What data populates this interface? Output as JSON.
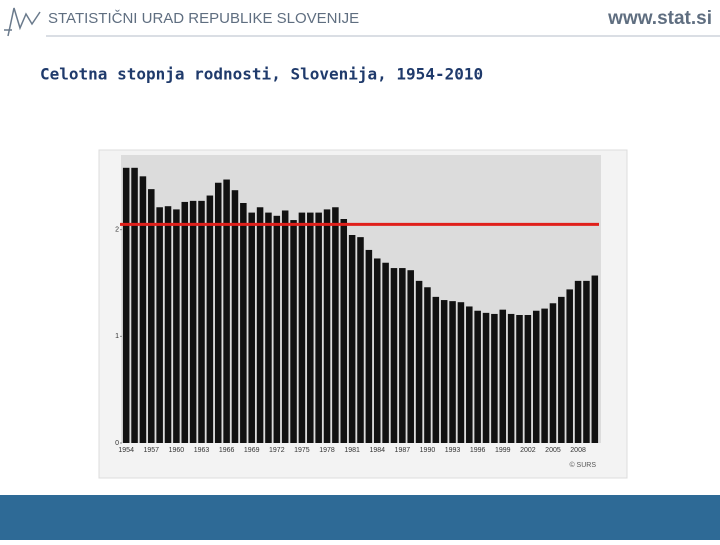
{
  "header": {
    "org": "STATISTIČNI URAD REPUBLIKE SLOVENIJE",
    "url": "www.stat.si"
  },
  "title": "Celotna stopnja rodnosti, Slovenija, 1954-2010",
  "chart_data": {
    "type": "bar",
    "color": "#111111",
    "categories": [
      "1954",
      null,
      null,
      "1957",
      null,
      null,
      "1960",
      null,
      null,
      "1963",
      null,
      null,
      "1966",
      null,
      null,
      "1969",
      null,
      null,
      "1972",
      null,
      null,
      "1975",
      null,
      null,
      "1978",
      null,
      null,
      "1981",
      null,
      null,
      "1984",
      null,
      null,
      "1987",
      null,
      null,
      "1990",
      null,
      null,
      "1993",
      null,
      null,
      "1996",
      null,
      null,
      "1999",
      null,
      null,
      "2002",
      null,
      null,
      "2005",
      null,
      null,
      "2008",
      null,
      null
    ],
    "values": [
      2.58,
      2.58,
      2.5,
      2.38,
      2.21,
      2.22,
      2.19,
      2.26,
      2.27,
      2.27,
      2.32,
      2.44,
      2.47,
      2.37,
      2.25,
      2.16,
      2.21,
      2.16,
      2.13,
      2.18,
      2.09,
      2.16,
      2.16,
      2.16,
      2.19,
      2.21,
      2.1,
      1.95,
      1.93,
      1.81,
      1.73,
      1.69,
      1.64,
      1.64,
      1.62,
      1.52,
      1.46,
      1.37,
      1.34,
      1.33,
      1.32,
      1.28,
      1.24,
      1.22,
      1.21,
      1.25,
      1.21,
      1.2,
      1.2,
      1.24,
      1.26,
      1.31,
      1.37,
      1.44,
      1.52,
      1.52,
      1.57
    ],
    "ylim": [
      0,
      2.7
    ],
    "yticks": [
      0,
      1,
      2
    ],
    "reference_line": {
      "value": 2.05,
      "color": "#e0201b"
    },
    "source": "© SURS"
  }
}
